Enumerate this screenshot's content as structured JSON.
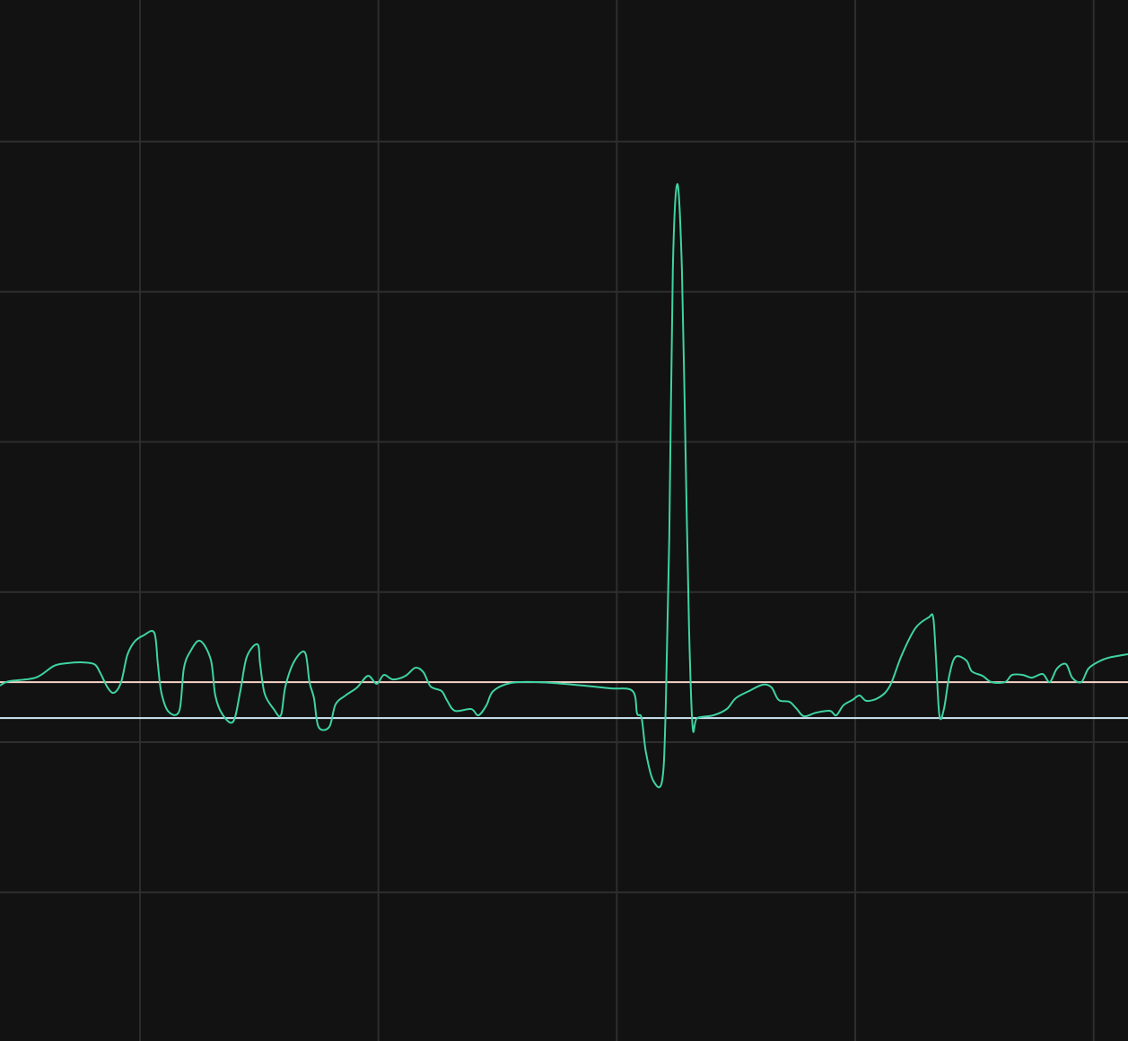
{
  "chart_data": {
    "type": "line",
    "title": "",
    "xlabel": "",
    "ylabel": "",
    "xlim": [
      0.413,
      5.144
    ],
    "ylim": [
      -1.99,
      4.943
    ],
    "grid": true,
    "x_gridlines": [
      1,
      2,
      3,
      4,
      5
    ],
    "y_gridlines": [
      -1,
      0,
      1,
      2,
      3,
      4
    ],
    "colors": {
      "background": "#121212",
      "grid": "#2e2e2e",
      "series": "#3fd3a3",
      "reference_upper": "#f6d3c6",
      "reference_lower": "#d3e8f8"
    },
    "reference_lines": [
      {
        "y": 0.4,
        "color_key": "reference_upper"
      },
      {
        "y": 0.161,
        "color_key": "reference_lower"
      }
    ],
    "series": [
      {
        "x": [
          0.413,
          0.451,
          0.563,
          0.639,
          0.695,
          0.752,
          0.808,
          0.834,
          0.864,
          0.891,
          0.921,
          0.947,
          0.977,
          1.015,
          1.06,
          1.075,
          1.09,
          1.12,
          1.165,
          1.184,
          1.211,
          1.252,
          1.297,
          1.316,
          1.346,
          1.391,
          1.421,
          1.448,
          1.493,
          1.504,
          1.523,
          1.561,
          1.591,
          1.61,
          1.647,
          1.692,
          1.711,
          1.73,
          1.749,
          1.794,
          1.82,
          1.862,
          1.911,
          1.956,
          1.993,
          2.023,
          2.061,
          2.114,
          2.155,
          2.189,
          2.219,
          2.265,
          2.287,
          2.321,
          2.389,
          2.419,
          2.453,
          2.482,
          2.558,
          2.671,
          2.821,
          2.972,
          3.066,
          3.085,
          3.104,
          3.122,
          3.153,
          3.19,
          3.205,
          3.22,
          3.235,
          3.254,
          3.273,
          3.288,
          3.303,
          3.318,
          3.337,
          3.405,
          3.461,
          3.499,
          3.555,
          3.612,
          3.649,
          3.679,
          3.724,
          3.755,
          3.785,
          3.837,
          3.894,
          3.92,
          3.95,
          3.988,
          4.018,
          4.048,
          4.101,
          4.146,
          4.195,
          4.252,
          4.308,
          4.327,
          4.338,
          4.353,
          4.372,
          4.395,
          4.421,
          4.466,
          4.489,
          4.534,
          4.572,
          4.628,
          4.658,
          4.703,
          4.741,
          4.786,
          4.816,
          4.846,
          4.884,
          4.91,
          4.948,
          4.978,
          5.023,
          5.061,
          5.098,
          5.144
        ],
        "y": [
          0.377,
          0.406,
          0.43,
          0.508,
          0.526,
          0.532,
          0.52,
          0.46,
          0.365,
          0.329,
          0.4,
          0.58,
          0.669,
          0.711,
          0.729,
          0.52,
          0.329,
          0.203,
          0.209,
          0.49,
          0.604,
          0.675,
          0.55,
          0.311,
          0.185,
          0.137,
          0.341,
          0.568,
          0.652,
          0.52,
          0.323,
          0.221,
          0.179,
          0.371,
          0.538,
          0.598,
          0.4,
          0.293,
          0.102,
          0.102,
          0.251,
          0.311,
          0.365,
          0.442,
          0.389,
          0.448,
          0.418,
          0.442,
          0.496,
          0.466,
          0.371,
          0.341,
          0.281,
          0.209,
          0.221,
          0.179,
          0.245,
          0.341,
          0.395,
          0.4,
          0.383,
          0.359,
          0.341,
          0.191,
          0.161,
          -0.066,
          -0.257,
          -0.257,
          0.221,
          1.357,
          3.15,
          3.718,
          3.15,
          1.955,
          0.759,
          0.102,
          0.161,
          0.179,
          0.221,
          0.293,
          0.341,
          0.383,
          0.365,
          0.281,
          0.269,
          0.221,
          0.173,
          0.197,
          0.209,
          0.179,
          0.245,
          0.281,
          0.311,
          0.275,
          0.299,
          0.377,
          0.58,
          0.759,
          0.831,
          0.831,
          0.58,
          0.179,
          0.221,
          0.448,
          0.568,
          0.544,
          0.472,
          0.442,
          0.4,
          0.4,
          0.448,
          0.448,
          0.43,
          0.454,
          0.4,
          0.49,
          0.52,
          0.43,
          0.4,
          0.49,
          0.538,
          0.562,
          0.574,
          0.586
        ]
      }
    ]
  }
}
